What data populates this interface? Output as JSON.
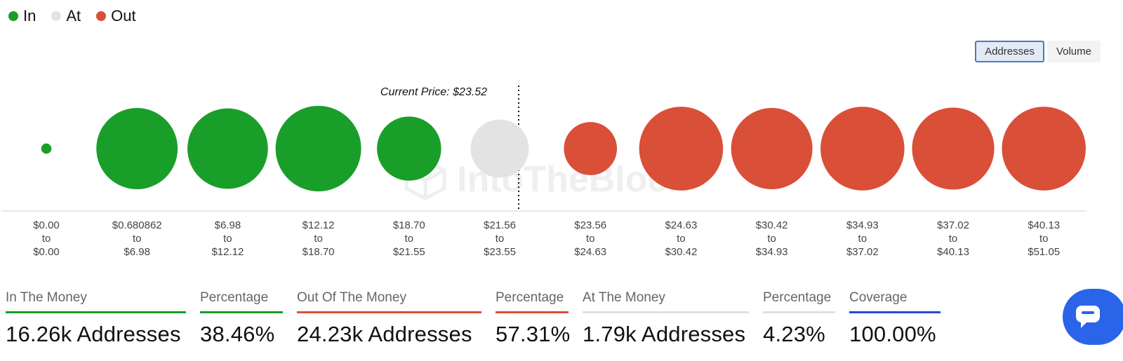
{
  "legend": {
    "items": [
      {
        "label": "In",
        "color": "#1a9e2a"
      },
      {
        "label": "At",
        "color": "#e3e3e3"
      },
      {
        "label": "Out",
        "color": "#d94f38"
      }
    ]
  },
  "toggle": {
    "addresses_label": "Addresses",
    "volume_label": "Volume"
  },
  "chart_data": {
    "type": "bubble",
    "current_price_label": "Current Price: $23.52",
    "current_price": 23.52,
    "colors": {
      "in": "#1a9e2a",
      "at": "#e3e3e3",
      "out": "#d94f38"
    },
    "bubbles": [
      {
        "from": "$0.00",
        "to": "$0.00",
        "status": "in",
        "size": 0.12
      },
      {
        "from": "$0.680862",
        "to": "$6.98",
        "status": "in",
        "size": 0.95
      },
      {
        "from": "$6.98",
        "to": "$12.12",
        "status": "in",
        "size": 0.94
      },
      {
        "from": "$12.12",
        "to": "$18.70",
        "status": "in",
        "size": 1.0
      },
      {
        "from": "$18.70",
        "to": "$21.55",
        "status": "in",
        "size": 0.75
      },
      {
        "from": "$21.56",
        "to": "$23.55",
        "status": "at",
        "size": 0.68
      },
      {
        "from": "$23.56",
        "to": "$24.63",
        "status": "out",
        "size": 0.62
      },
      {
        "from": "$24.63",
        "to": "$30.42",
        "status": "out",
        "size": 0.98
      },
      {
        "from": "$30.42",
        "to": "$34.93",
        "status": "out",
        "size": 0.95
      },
      {
        "from": "$34.93",
        "to": "$37.02",
        "status": "out",
        "size": 0.98
      },
      {
        "from": "$37.02",
        "to": "$40.13",
        "status": "out",
        "size": 0.96
      },
      {
        "from": "$40.13",
        "to": "$51.05",
        "status": "out",
        "size": 0.98
      }
    ],
    "range_connector": "to"
  },
  "watermark": {
    "text": "IntoTheBlock"
  },
  "stats": [
    {
      "label": "In The Money",
      "value": "16.26k Addresses",
      "color": "#1a9e2a"
    },
    {
      "label": "Percentage",
      "value": "38.46%",
      "color": "#1a9e2a"
    },
    {
      "label": "Out Of The Money",
      "value": "24.23k Addresses",
      "color": "#d94f38"
    },
    {
      "label": "Percentage",
      "value": "57.31%",
      "color": "#d94f38"
    },
    {
      "label": "At The Money",
      "value": "1.79k Addresses",
      "color": "#e0e0e0"
    },
    {
      "label": "Percentage",
      "value": "4.23%",
      "color": "#e0e0e0"
    },
    {
      "label": "Coverage",
      "value": "100.00%",
      "color": "#2a46e0"
    }
  ],
  "chat": {
    "icon": "chat-bubble-icon",
    "color": "#2a64e8"
  }
}
